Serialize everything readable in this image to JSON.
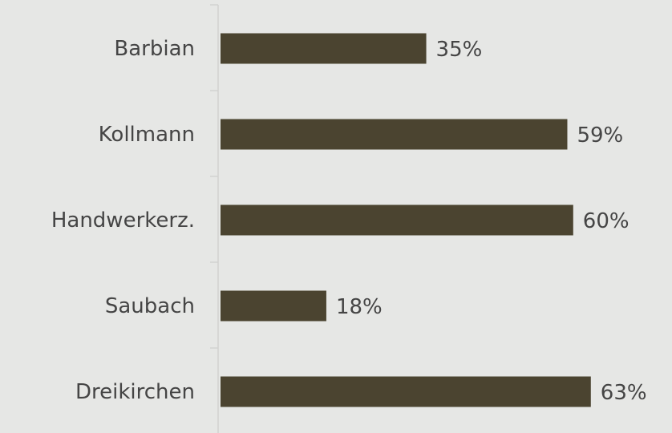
{
  "chart_data": {
    "type": "bar",
    "orientation": "horizontal",
    "categories": [
      "Barbian",
      "Kollmann",
      "Handwerkerz.",
      "Saubach",
      "Dreikirchen"
    ],
    "values": [
      35,
      59,
      60,
      18,
      63
    ],
    "value_labels": [
      "35%",
      "59%",
      "60%",
      "18%",
      "63%"
    ],
    "color": "#4b4430",
    "xlim": [
      0,
      100
    ]
  }
}
